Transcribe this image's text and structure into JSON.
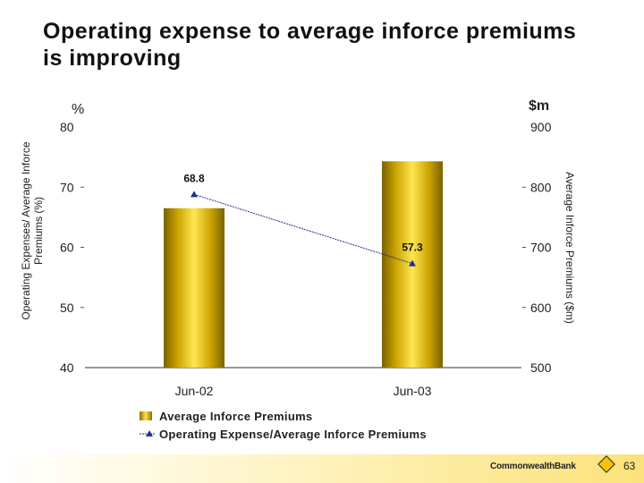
{
  "slide": {
    "title": "Operating expense to average inforce premiums is improving",
    "page_number": "63",
    "logo_text": "CommonwealthBank"
  },
  "chart_data": {
    "type": "bar",
    "title": "Operating expense to average inforce premiums is improving",
    "categories": [
      "Jun-02",
      "Jun-03"
    ],
    "left_axis": {
      "unit": "%",
      "label": "Operating Expenses/ Average Inforce Premiums (%)",
      "range": [
        40,
        80
      ],
      "ticks": [
        40,
        50,
        60,
        70,
        80
      ]
    },
    "right_axis": {
      "unit": "$m",
      "label": "Average Inforce Premiums ($m)",
      "range": [
        500,
        900
      ],
      "ticks": [
        500,
        600,
        700,
        800,
        900
      ]
    },
    "series": [
      {
        "name": "Average Inforce Premiums",
        "kind": "bar",
        "axis": "right",
        "values": [
          765,
          843
        ]
      },
      {
        "name": "Operating Expense/Average Inforce Premiums",
        "kind": "line",
        "axis": "left",
        "values": [
          68.8,
          57.3
        ],
        "labels": [
          "68.8",
          "57.3"
        ]
      }
    ],
    "colors": {
      "bar": "#f2cc00",
      "line": "#1f2f9a"
    }
  }
}
